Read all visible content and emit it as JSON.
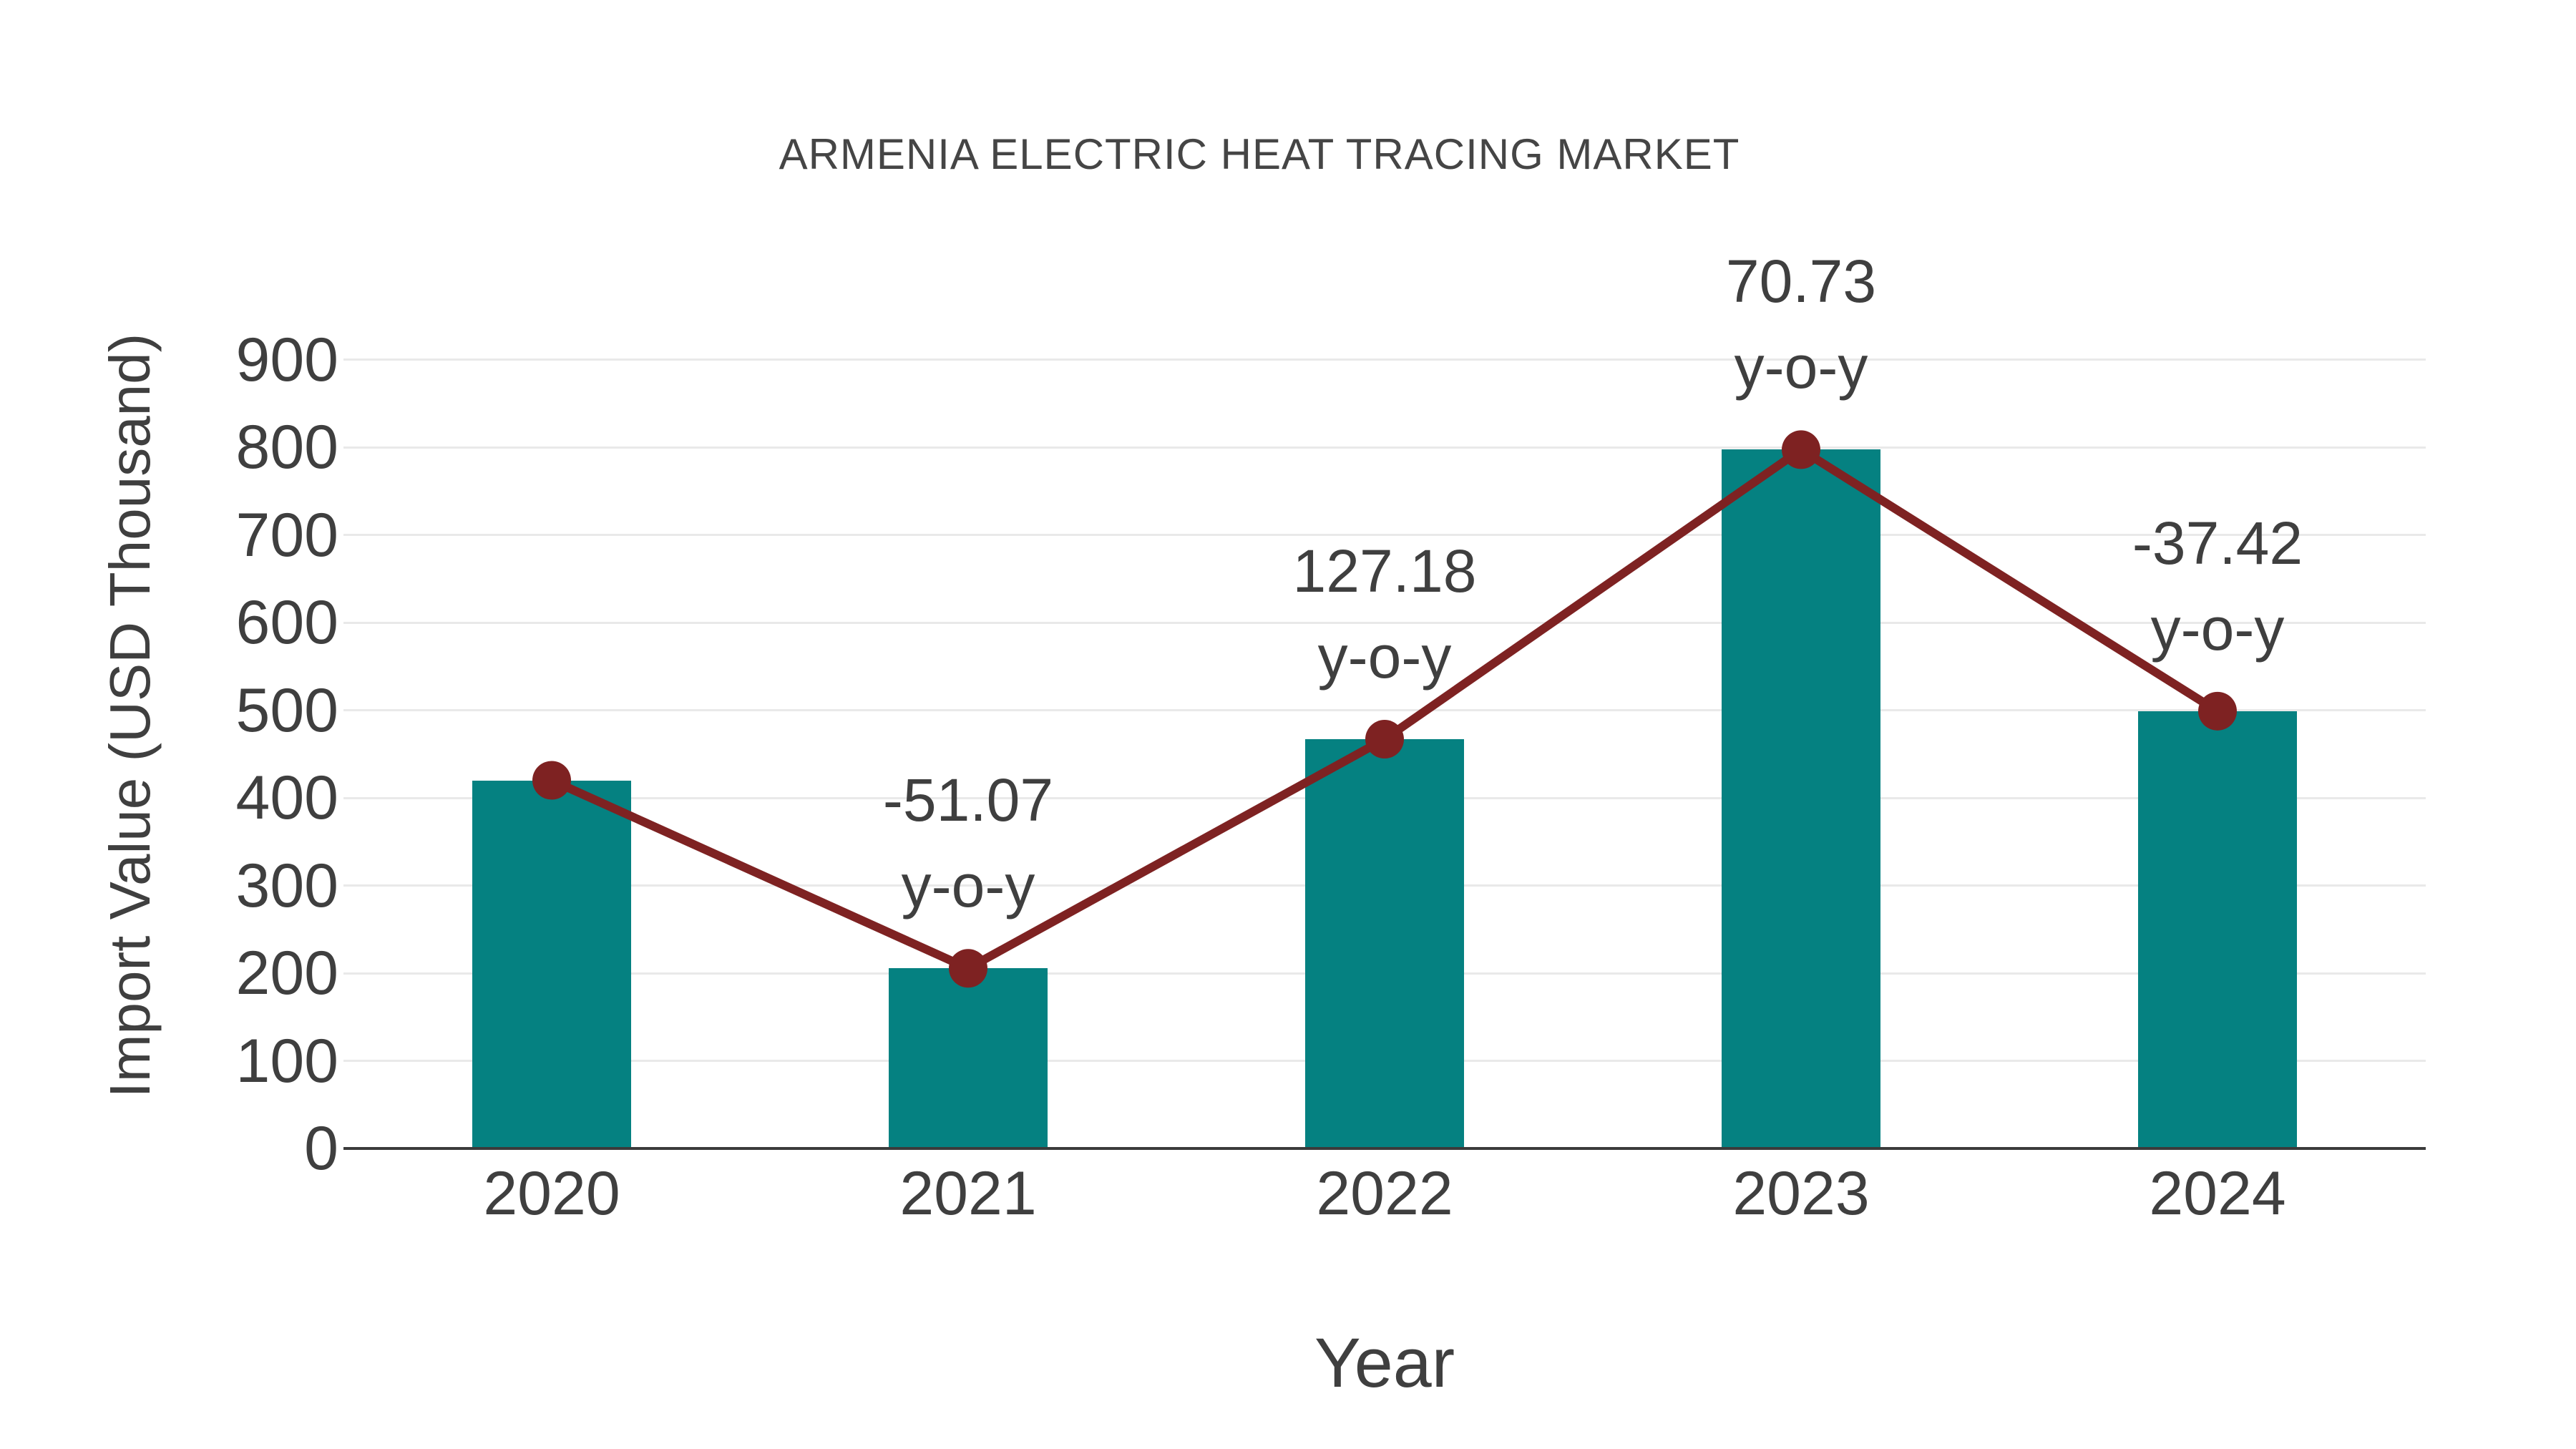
{
  "chart_data": {
    "type": "bar",
    "title": "ARMENIA ELECTRIC HEAT TRACING MARKET",
    "xlabel": "Year",
    "ylabel": "Import Value (USD Thousand)",
    "categories": [
      "2020",
      "2021",
      "2022",
      "2023",
      "2024"
    ],
    "series": [
      {
        "name": "Import Value (USD Thousand)",
        "type": "bar",
        "values": [
          420,
          205.5,
          466.9,
          797.2,
          498.9
        ]
      },
      {
        "name": "y-o-y change",
        "type": "line+markers",
        "values": [
          420,
          205.5,
          466.9,
          797.2,
          498.9
        ]
      }
    ],
    "yoy_percent": [
      null,
      -51.07,
      127.18,
      70.73,
      -37.42
    ],
    "annotations": [
      {
        "index": 1,
        "line1": "-51.07",
        "line2": "y-o-y"
      },
      {
        "index": 2,
        "line1": "127.18",
        "line2": "y-o-y"
      },
      {
        "index": 3,
        "line1": "70.73",
        "line2": "y-o-y"
      },
      {
        "index": 4,
        "line1": "-37.42",
        "line2": "y-o-y"
      }
    ],
    "yticks": [
      0,
      100,
      200,
      300,
      400,
      500,
      600,
      700,
      800,
      900
    ],
    "ylim": [
      0,
      900
    ],
    "grid": true,
    "legend": "none",
    "colors": {
      "bar": "#058181",
      "line": "#7E2222",
      "marker": "#7E2222",
      "gridline": "#E9E9E9",
      "axis": "#3B3B3B",
      "text": "#3F3F3F",
      "title": "#454545"
    }
  }
}
